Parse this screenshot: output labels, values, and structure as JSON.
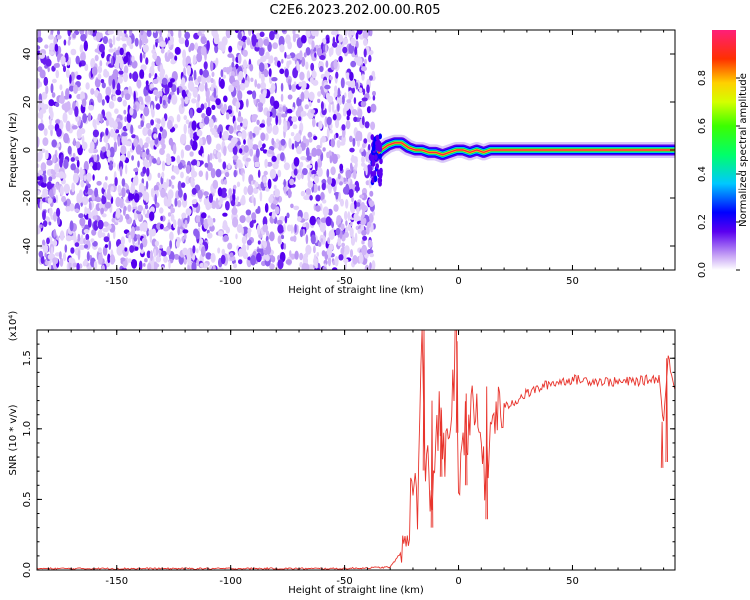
{
  "title": "C2E6.2023.202.00.00.R05",
  "chart_data": [
    {
      "type": "heatmap",
      "xlabel": "Height of straight line (km)",
      "ylabel": "Frequency (Hz)",
      "xlim": [
        -185,
        95
      ],
      "ylim": [
        -50,
        50
      ],
      "xticks": [
        -150,
        -100,
        -50,
        0,
        50
      ],
      "yticks": [
        -40,
        -20,
        0,
        20,
        40
      ],
      "noise_region_x": [
        -185,
        -37
      ],
      "signal_track": {
        "x": [
          -37,
          -34,
          -31,
          -28,
          -25,
          -22,
          -19,
          -16,
          -13,
          -10,
          -7,
          -4,
          -1,
          2,
          5,
          8,
          11,
          14,
          17,
          20,
          30,
          40,
          50,
          60,
          70,
          80,
          90,
          95
        ],
        "y": [
          -3,
          0,
          2,
          3,
          3,
          1,
          0,
          0,
          -1,
          -1,
          -2,
          -1,
          0,
          0,
          -1,
          0,
          -1,
          0,
          0,
          0,
          0,
          0,
          0,
          0,
          0,
          0,
          0,
          0
        ]
      },
      "colorbar": {
        "label": "Normalized spectral amplitude",
        "range": [
          0,
          1
        ],
        "ticks": [
          "0.0",
          "0.2",
          "0.4",
          "0.6",
          "0.8"
        ]
      }
    },
    {
      "type": "line",
      "xlabel": "Height of straight line (km)",
      "ylabel": "SNR (10 * v/v)",
      "multiplier": "(x10⁴)",
      "xlim": [
        -185,
        95
      ],
      "ylim": [
        0,
        1.7
      ],
      "xticks": [
        -150,
        -100,
        -50,
        0,
        50
      ],
      "yticks": [
        "0.0",
        "0.5",
        "1.0",
        "1.5"
      ],
      "color": "#e8342c",
      "series": [
        {
          "x": [
            -185,
            -150,
            -100,
            -50,
            -30,
            -24,
            -22,
            -20,
            -18,
            -16,
            -15,
            -14,
            -12,
            -10,
            -8,
            -6,
            -3,
            -1,
            0,
            1,
            3,
            6,
            9,
            12,
            15,
            20,
            25,
            30,
            40,
            50,
            60,
            70,
            80,
            88,
            90,
            92,
            95
          ],
          "y": [
            0.01,
            0.01,
            0.01,
            0.01,
            0.02,
            0.15,
            0.35,
            0.6,
            0.5,
            1.65,
            0.7,
            0.8,
            0.5,
            0.9,
            1.1,
            0.7,
            1.2,
            1.62,
            0.35,
            0.9,
            1.0,
            1.1,
            1.05,
            0.6,
            1.1,
            1.15,
            1.2,
            1.25,
            1.32,
            1.35,
            1.34,
            1.33,
            1.34,
            1.36,
            1.05,
            1.5,
            1.3
          ]
        }
      ]
    }
  ]
}
